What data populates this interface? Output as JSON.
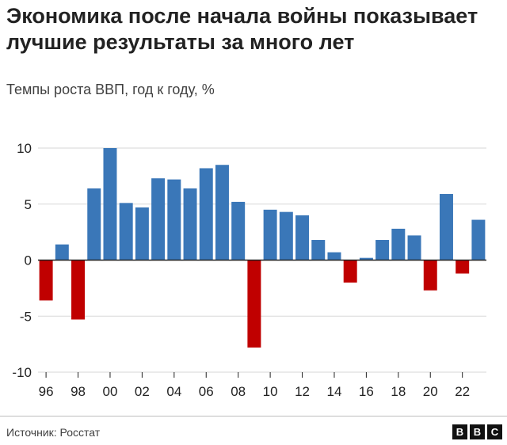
{
  "header": {
    "title": "Экономика после начала войны показывает лучшие результаты за много лет",
    "subtitle": "Темпы роста ВВП, год к году, %"
  },
  "footer": {
    "source": "Источник: Росстат",
    "logo_letters": [
      "B",
      "B",
      "C"
    ]
  },
  "colors": {
    "positive": "#3a77b8",
    "negative": "#c00000",
    "grid": "#d7d7d7",
    "axis": "#222222"
  },
  "chart_data": {
    "type": "bar",
    "title": "Экономика после начала войны показывает лучшие результаты за много лет",
    "subtitle": "Темпы роста ВВП, год к году, %",
    "xlabel": "",
    "ylabel": "",
    "ylim": [
      -10,
      10
    ],
    "yticks": [
      10,
      5,
      0,
      -5,
      -10
    ],
    "ytick_labels": [
      "10",
      "5",
      "0",
      "-5",
      "-10"
    ],
    "xtick_labels": [
      {
        "year": 1996,
        "label": "96"
      },
      {
        "year": 1998,
        "label": "98"
      },
      {
        "year": 2000,
        "label": "00"
      },
      {
        "year": 2002,
        "label": "02"
      },
      {
        "year": 2004,
        "label": "04"
      },
      {
        "year": 2006,
        "label": "06"
      },
      {
        "year": 2008,
        "label": "08"
      },
      {
        "year": 2010,
        "label": "10"
      },
      {
        "year": 2012,
        "label": "12"
      },
      {
        "year": 2014,
        "label": "14"
      },
      {
        "year": 2016,
        "label": "16"
      },
      {
        "year": 2018,
        "label": "18"
      },
      {
        "year": 2020,
        "label": "20"
      },
      {
        "year": 2022,
        "label": "22"
      }
    ],
    "categories": [
      1996,
      1997,
      1998,
      1999,
      2000,
      2001,
      2002,
      2003,
      2004,
      2005,
      2006,
      2007,
      2008,
      2009,
      2010,
      2011,
      2012,
      2013,
      2014,
      2015,
      2016,
      2017,
      2018,
      2019,
      2020,
      2021,
      2022,
      2023
    ],
    "values": [
      -3.6,
      1.4,
      -5.3,
      6.4,
      10.0,
      5.1,
      4.7,
      7.3,
      7.2,
      6.4,
      8.2,
      8.5,
      5.2,
      -7.8,
      4.5,
      4.3,
      4.0,
      1.8,
      0.7,
      -2.0,
      0.2,
      1.8,
      2.8,
      2.2,
      -2.7,
      5.9,
      -1.2,
      3.6
    ],
    "grid": true,
    "legend": "none"
  }
}
